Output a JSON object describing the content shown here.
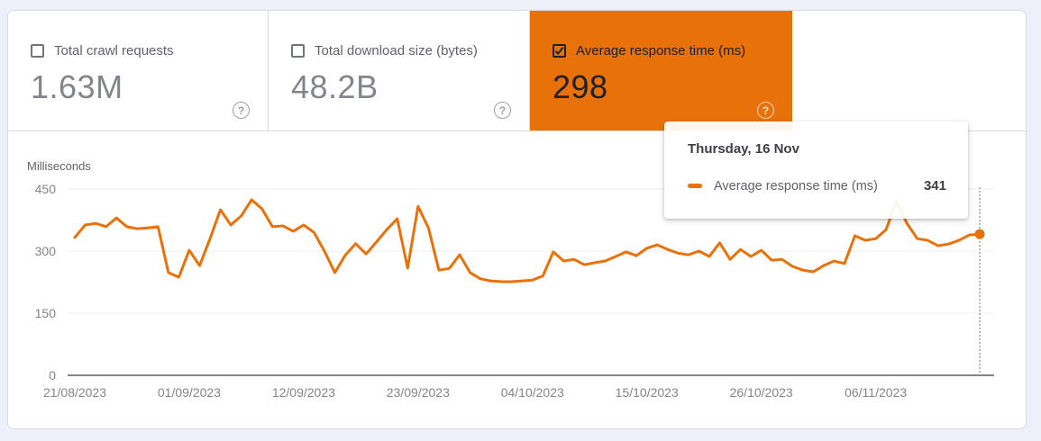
{
  "cards": [
    {
      "label": "Total crawl requests",
      "value": "1.63M",
      "checked": false
    },
    {
      "label": "Total download size (bytes)",
      "value": "48.2B",
      "checked": false
    },
    {
      "label": "Average response time (ms)",
      "value": "298",
      "checked": true
    }
  ],
  "icons": {
    "help": "?",
    "checkbox_checked": "check-mark"
  },
  "tooltip": {
    "title": "Thursday, 16 Nov",
    "series_label": "Average response time (ms)",
    "value": "341"
  },
  "colors": {
    "accent_orange": "#e8710a",
    "page_background": "#edf0f8",
    "panel_border": "#dadce0",
    "gridline": "#ebedf0",
    "axis_line": "#80868b",
    "hover_line": "#9aa0a6",
    "tick_text": "#80868b"
  },
  "chart_data": {
    "type": "line",
    "title": "",
    "xlabel": "",
    "ylabel": "Milliseconds",
    "ylim": [
      0,
      450
    ],
    "y_ticks": [
      450,
      300,
      150,
      0
    ],
    "grid": true,
    "legend_position": "tooltip-only",
    "x_start_date": "21/08/2023",
    "x_end_date": "16/11/2023",
    "x_tick_labels": [
      "21/08/2023",
      "01/09/2023",
      "12/09/2023",
      "23/09/2023",
      "04/10/2023",
      "15/10/2023",
      "26/10/2023",
      "06/11/2023"
    ],
    "x_tick_day_indices": [
      0,
      11,
      22,
      33,
      44,
      55,
      66,
      77
    ],
    "series": [
      {
        "name": "Average response time (ms)",
        "color": "#e8710a",
        "values": [
          333,
          363,
          367,
          359,
          380,
          359,
          354,
          356,
          359,
          248,
          237,
          302,
          265,
          330,
          400,
          363,
          385,
          424,
          402,
          359,
          361,
          348,
          363,
          345,
          300,
          248,
          290,
          318,
          293,
          322,
          352,
          378,
          259,
          408,
          356,
          254,
          258,
          291,
          248,
          233,
          228,
          226,
          226,
          228,
          230,
          240,
          298,
          276,
          280,
          267,
          272,
          276,
          287,
          298,
          289,
          307,
          315,
          304,
          295,
          291,
          300,
          287,
          320,
          280,
          304,
          287,
          302,
          278,
          280,
          263,
          254,
          250,
          265,
          276,
          270,
          337,
          326,
          330,
          352,
          420,
          367,
          330,
          326,
          313,
          317,
          326,
          339,
          341
        ]
      }
    ],
    "hover": {
      "day_index": 87,
      "value": 341,
      "label": "Thursday, 16 Nov"
    }
  }
}
